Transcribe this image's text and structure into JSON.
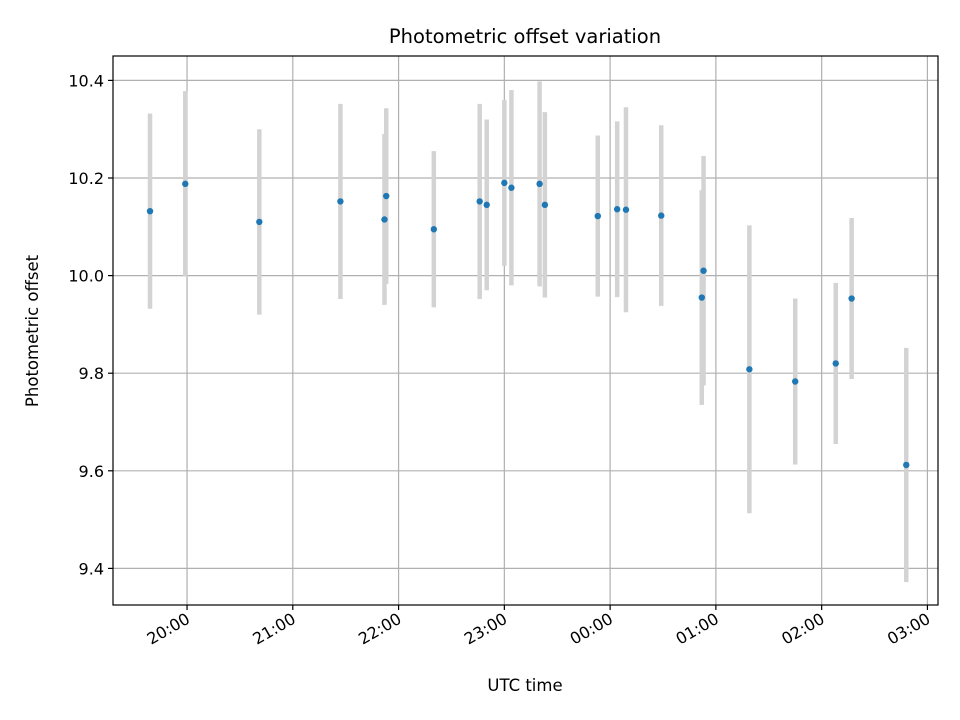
{
  "chart_data": {
    "type": "scatter",
    "title": "Photometric offset variation",
    "xlabel": "UTC time",
    "ylabel": "Photometric offset",
    "x_ticks": [
      "19:00-base"
    ],
    "x_tick_labels": [
      "20:00",
      "21:00",
      "22:00",
      "23:00",
      "00:00",
      "01:00",
      "02:00",
      "03:00"
    ],
    "x_tick_times": [
      "20:00",
      "21:00",
      "22:00",
      "23:00",
      "24:00",
      "25:00",
      "26:00",
      "27:00"
    ],
    "xlim": [
      "19:18",
      "27:06"
    ],
    "y_ticks": [
      9.4,
      9.6,
      9.8,
      10.0,
      10.2,
      10.4
    ],
    "y_tick_labels": [
      "9.4",
      "9.6",
      "9.8",
      "10.0",
      "10.2",
      "10.4"
    ],
    "ylim": [
      9.325,
      10.45
    ],
    "grid": true,
    "marker_color": "#1f77b4",
    "errorbar_color": "#d3d3d3",
    "points": [
      {
        "x": "19:39",
        "y": 10.132,
        "err": 0.2
      },
      {
        "x": "19:59",
        "y": 10.188,
        "err": 0.19
      },
      {
        "x": "20:41",
        "y": 10.11,
        "err": 0.19
      },
      {
        "x": "21:27",
        "y": 10.152,
        "err": 0.2
      },
      {
        "x": "21:52",
        "y": 10.115,
        "err": 0.175
      },
      {
        "x": "21:53",
        "y": 10.163,
        "err": 0.18
      },
      {
        "x": "22:20",
        "y": 10.095,
        "err": 0.16
      },
      {
        "x": "22:46",
        "y": 10.152,
        "err": 0.2
      },
      {
        "x": "22:50",
        "y": 10.145,
        "err": 0.175
      },
      {
        "x": "23:00",
        "y": 10.19,
        "err": 0.17
      },
      {
        "x": "23:04",
        "y": 10.18,
        "err": 0.2
      },
      {
        "x": "23:20",
        "y": 10.188,
        "err": 0.21
      },
      {
        "x": "23:23",
        "y": 10.145,
        "err": 0.19
      },
      {
        "x": "23:53",
        "y": 10.122,
        "err": 0.165
      },
      {
        "x": "24:04",
        "y": 10.136,
        "err": 0.18
      },
      {
        "x": "24:09",
        "y": 10.135,
        "err": 0.21
      },
      {
        "x": "24:29",
        "y": 10.123,
        "err": 0.185
      },
      {
        "x": "24:52",
        "y": 9.955,
        "err": 0.22
      },
      {
        "x": "24:53",
        "y": 10.01,
        "err": 0.235
      },
      {
        "x": "25:19",
        "y": 9.808,
        "err": 0.295
      },
      {
        "x": "25:45",
        "y": 9.783,
        "err": 0.17
      },
      {
        "x": "26:08",
        "y": 9.82,
        "err": 0.165
      },
      {
        "x": "26:17",
        "y": 9.953,
        "err": 0.165
      },
      {
        "x": "26:48",
        "y": 9.612,
        "err": 0.24
      }
    ]
  }
}
